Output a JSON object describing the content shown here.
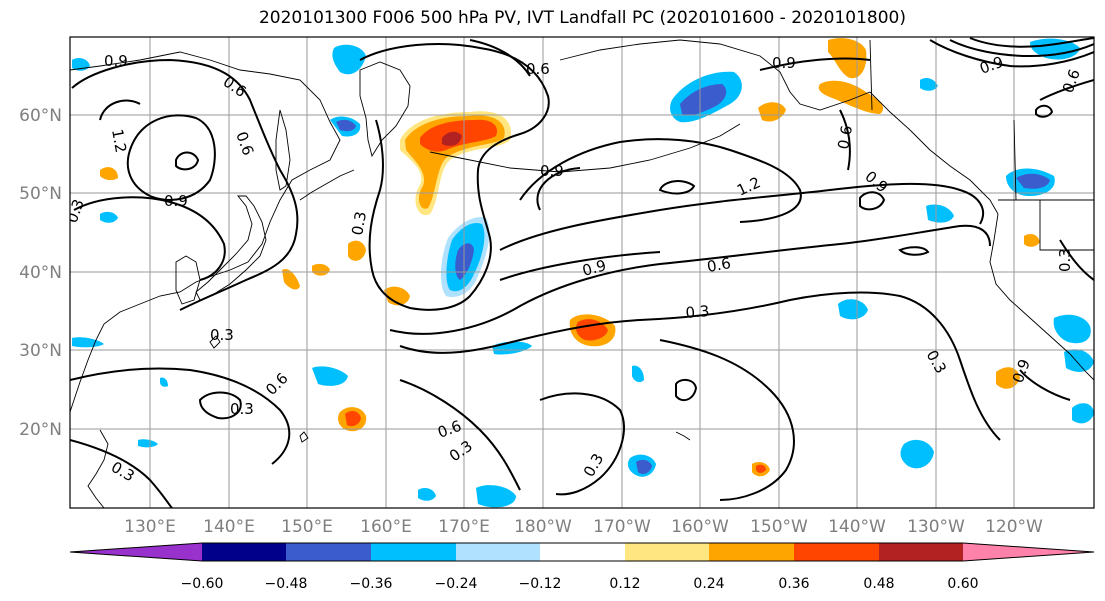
{
  "title": "2020101300 F006 500 hPa PV, IVT Landfall PC (2020101600 - 2020101800)",
  "lat_labels": [
    "60°N",
    "50°N",
    "40°N",
    "30°N",
    "20°N"
  ],
  "lon_labels": [
    "130°E",
    "140°E",
    "150°E",
    "160°E",
    "170°E",
    "180°W",
    "170°W",
    "160°W",
    "150°W",
    "140°W",
    "130°W",
    "120°W"
  ],
  "colorbar": {
    "ticks": [
      "−0.60",
      "−0.48",
      "−0.36",
      "−0.24",
      "−0.12",
      "0.12",
      "0.24",
      "0.36",
      "0.48",
      "0.60"
    ],
    "colors": [
      "#9932cc",
      "#00008b",
      "#3a5ccc",
      "#00bfff",
      "#b0e2ff",
      "#ffffff",
      "#ffe680",
      "#ffa500",
      "#ff4500",
      "#b22222",
      "#ff82ab"
    ]
  },
  "contour_labels": [
    "0.9",
    "0.6",
    "0.9",
    "0.3",
    "0.6",
    "1.2",
    "0.6",
    "0.9",
    "0.3",
    "0.9",
    "0.9",
    "0.6",
    "0.3",
    "0.3",
    "0.6",
    "0.3",
    "0.6",
    "0.3",
    "0.3",
    "0.9",
    "0.9",
    "1.2",
    "0.6",
    "0.3",
    "0.3",
    "0.9",
    "0.6",
    "0.3"
  ]
}
